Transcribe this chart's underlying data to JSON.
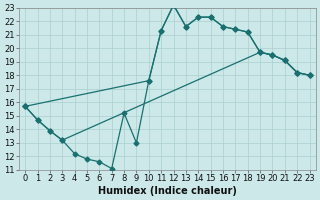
{
  "xlabel": "Humidex (Indice chaleur)",
  "xlim": [
    -0.5,
    23.5
  ],
  "ylim": [
    11,
    23
  ],
  "xticks": [
    0,
    1,
    2,
    3,
    4,
    5,
    6,
    7,
    8,
    9,
    10,
    11,
    12,
    13,
    14,
    15,
    16,
    17,
    18,
    19,
    20,
    21,
    22,
    23
  ],
  "yticks": [
    11,
    12,
    13,
    14,
    15,
    16,
    17,
    18,
    19,
    20,
    21,
    22,
    23
  ],
  "bg_color": "#cce8e8",
  "grid_color": "#aacfcf",
  "line_color": "#1a7070",
  "marker": "D",
  "marker_size": 2.5,
  "linewidth": 0.9,
  "tick_fontsize": 6.0,
  "line1_x": [
    0,
    1,
    2,
    3,
    4,
    5,
    6,
    7,
    8,
    9,
    10,
    11,
    12,
    13,
    14,
    15,
    16,
    17,
    18,
    19,
    20,
    21,
    22,
    23
  ],
  "line1_y": [
    15.7,
    14.7,
    13.9,
    13.2,
    12.2,
    11.8,
    11.6,
    11.1,
    15.2,
    13.0,
    17.6,
    21.3,
    23.2,
    21.6,
    22.3,
    22.3,
    21.6,
    21.4,
    21.2,
    19.7,
    19.5,
    19.1,
    18.2,
    18.0
  ],
  "line2_x": [
    0,
    10,
    11,
    12,
    13,
    14,
    15,
    16,
    17,
    18,
    19,
    20,
    21,
    22,
    23
  ],
  "line2_y": [
    15.7,
    17.6,
    21.3,
    23.2,
    21.6,
    22.3,
    22.3,
    21.6,
    21.4,
    21.2,
    19.7,
    19.5,
    19.1,
    18.2,
    18.0
  ],
  "line3_x": [
    0,
    1,
    2,
    3,
    19,
    20,
    21,
    22,
    23
  ],
  "line3_y": [
    15.7,
    14.7,
    13.9,
    13.2,
    19.7,
    19.5,
    19.1,
    18.2,
    18.0
  ]
}
